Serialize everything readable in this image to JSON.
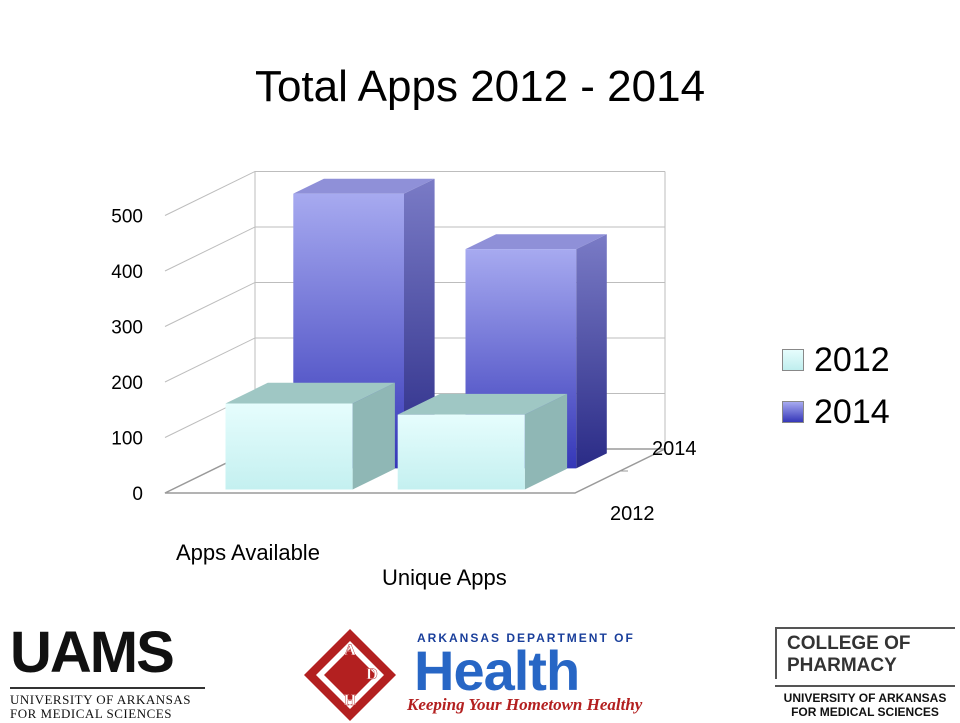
{
  "chart_data": {
    "type": "bar",
    "title": "Total Apps 2012 - 2014",
    "categories": [
      "Apps Available",
      "Unique Apps"
    ],
    "series": [
      {
        "name": "2012",
        "values": [
          155,
          135
        ],
        "color": "#c9f6f6"
      },
      {
        "name": "2014",
        "values": [
          495,
          395
        ],
        "color": "#6b6fe0"
      }
    ],
    "depth_labels": [
      "2014",
      "2012"
    ],
    "y_ticks": [
      "0",
      "100",
      "200",
      "300",
      "400",
      "500"
    ],
    "ylim": [
      0,
      500
    ],
    "grid": true,
    "legend_position": "right",
    "projection": "3d"
  },
  "footer": {
    "uams": {
      "word": "UAMS",
      "line1": "UNIVERSITY OF ARKANSAS",
      "line2": "FOR MEDICAL SCIENCES"
    },
    "adh": {
      "dept": "ARKANSAS DEPARTMENT OF",
      "health": "Health",
      "tagline": "Keeping Your Hometown Healthy",
      "emblem_letters": [
        "A",
        "D",
        "H"
      ],
      "emblem_color": "#b32020"
    },
    "cop": {
      "line1": "COLLEGE OF",
      "line2": "PHARMACY",
      "sub1": "UNIVERSITY OF ARKANSAS",
      "sub2": "FOR MEDICAL SCIENCES"
    }
  }
}
